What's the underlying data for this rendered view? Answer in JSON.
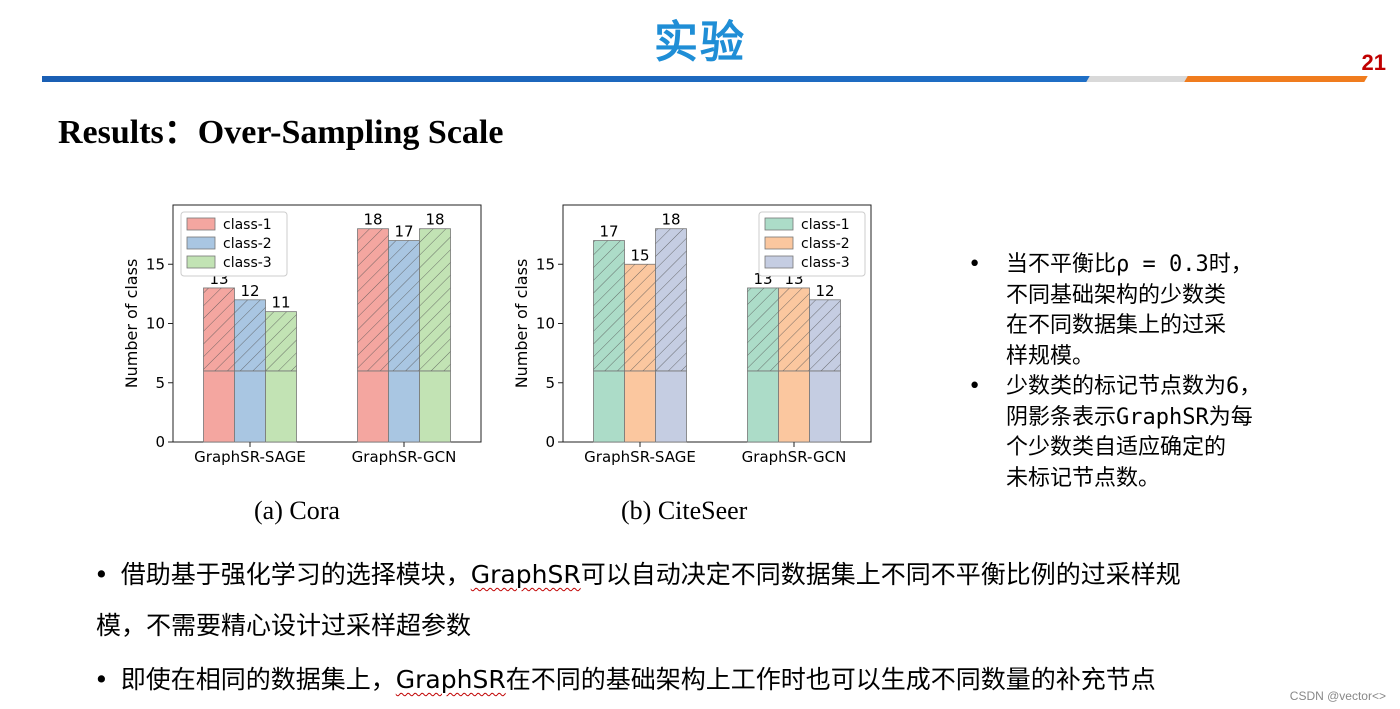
{
  "header": {
    "title": "实验",
    "page_number": "21"
  },
  "subtitle": "Results：Over-Sampling Scale",
  "chart_data": [
    {
      "type": "bar",
      "caption": "(a) Cora",
      "ylabel": "Number of class",
      "categories": [
        "GraphSR-SAGE",
        "GraphSR-GCN"
      ],
      "ylim": [
        0,
        20
      ],
      "yticks": [
        0,
        5,
        10,
        15
      ],
      "legend_placement": "top-left",
      "base_value": 6,
      "series": [
        {
          "name": "class-1",
          "values": [
            13,
            18
          ],
          "color": "#f4a6a0"
        },
        {
          "name": "class-2",
          "values": [
            12,
            17
          ],
          "color": "#a9c6e2"
        },
        {
          "name": "class-3",
          "values": [
            11,
            18
          ],
          "color": "#c2e3b4"
        }
      ]
    },
    {
      "type": "bar",
      "caption": "(b) CiteSeer",
      "ylabel": "Number of class",
      "categories": [
        "GraphSR-SAGE",
        "GraphSR-GCN"
      ],
      "ylim": [
        0,
        20
      ],
      "yticks": [
        0,
        5,
        10,
        15
      ],
      "legend_placement": "top-right",
      "base_value": 6,
      "series": [
        {
          "name": "class-1",
          "values": [
            17,
            13
          ],
          "color": "#acdcc8"
        },
        {
          "name": "class-2",
          "values": [
            15,
            13
          ],
          "color": "#fbc79f"
        },
        {
          "name": "class-3",
          "values": [
            18,
            12
          ],
          "color": "#c5cde2"
        }
      ]
    }
  ],
  "side_notes": [
    [
      "当不平衡比ρ = 0.3时，",
      "不同基础架构的少数类",
      "在不同数据集上的过采",
      "样规模。"
    ],
    [
      "少数类的标记节点数为6，",
      "阴影条表示GraphSR为每",
      "个少数类自适应确定的",
      "未标记节点数。"
    ]
  ],
  "bullets": [
    {
      "pre": "借助基于强化学习的选择模块，",
      "em": "GraphSR",
      "post": "可以自动决定不同数据集上不同不平衡比例的过采样规",
      "cont": "模，不需要精心设计过采样超参数"
    },
    {
      "pre": "即使在相同的数据集上，",
      "em": "GraphSR",
      "post": "在不同的基础架构上工作时也可以生成不同数量的补充节点",
      "cont": ""
    }
  ],
  "bullet_symbol": "•",
  "watermark": "CSDN @vector<>"
}
